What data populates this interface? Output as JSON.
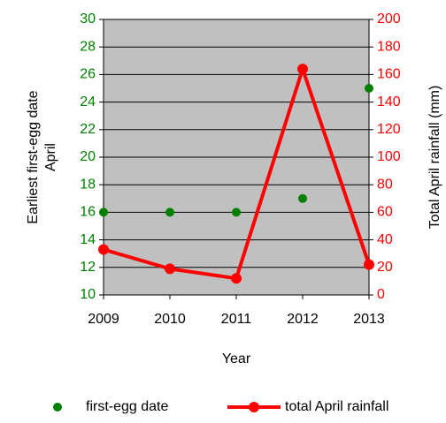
{
  "chart_data": {
    "type": "scatter-line",
    "xlabel": "Year",
    "ylabel": [
      "Earliest first-egg date",
      "April"
    ],
    "y2label": "Total April rainfall (mm)",
    "x": [
      2009,
      2010,
      2011,
      2012,
      2013
    ],
    "xlim": [
      2009,
      2013
    ],
    "xticks": [
      2009,
      2010,
      2011,
      2012,
      2013
    ],
    "ylim": [
      10,
      30
    ],
    "yticks": [
      10,
      12,
      14,
      16,
      18,
      20,
      22,
      24,
      26,
      28,
      30
    ],
    "y2lim": [
      0,
      200
    ],
    "y2ticks": [
      0,
      20,
      40,
      60,
      80,
      100,
      120,
      140,
      160,
      180,
      200
    ],
    "grid": true,
    "legend": "bottom",
    "series": [
      {
        "name": "first-egg date",
        "color": "#008000",
        "type": "scatter",
        "values": [
          16,
          16,
          16,
          17,
          25
        ]
      },
      {
        "name": "total April rainfall",
        "color": "#ff0000",
        "type": "line",
        "axis": "y2",
        "values": [
          33,
          19,
          12,
          164,
          22
        ]
      }
    ]
  }
}
